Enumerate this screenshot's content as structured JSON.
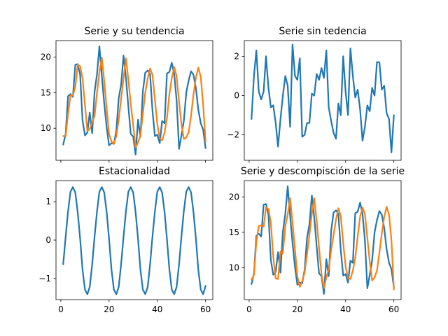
{
  "colors": {
    "series_1": "#1f77b4",
    "series_2": "#ff7f0e"
  },
  "chart_data": [
    {
      "type": "line",
      "title": "Serie y su tendencia",
      "xlim": [
        -2,
        63
      ],
      "ylim": [
        5.5,
        22.3
      ],
      "yticks": [
        10,
        15,
        20
      ],
      "xticks": [
        0,
        20,
        40,
        60
      ],
      "show_xticklabels": false,
      "series": [
        {
          "color": "#1f77b4",
          "x": [
            1,
            2,
            3,
            4,
            5,
            6,
            7,
            8,
            9,
            10,
            11,
            12,
            13,
            14,
            15,
            16,
            17,
            18,
            19,
            20,
            21,
            22,
            23,
            24,
            25,
            26,
            27,
            28,
            29,
            30,
            31,
            32,
            33,
            34,
            35,
            36,
            37,
            38,
            39,
            40,
            41,
            42,
            43,
            44,
            45,
            46,
            47,
            48,
            49,
            50,
            51,
            52,
            53,
            54,
            55,
            56,
            57,
            58,
            59,
            60
          ],
          "values": [
            7.7,
            9.2,
            14.5,
            14.8,
            14.4,
            18.9,
            19.0,
            17.5,
            11.1,
            9.0,
            9.4,
            12.2,
            9.3,
            15.1,
            17.6,
            21.5,
            17.3,
            13.5,
            10.1,
            7.6,
            7.9,
            7.8,
            9.7,
            14.2,
            16.1,
            20.2,
            17.1,
            13.0,
            9.2,
            8.8,
            6.3,
            11.2,
            8.8,
            15.2,
            17.8,
            18.1,
            17.6,
            12.5,
            8.9,
            9.1,
            7.9,
            11.0,
            10.7,
            17.7,
            17.9,
            19.2,
            17.6,
            13.9,
            7.1,
            9.0,
            11.0,
            15.0,
            16.7,
            18.0,
            17.5,
            15.6,
            12.6,
            10.7,
            9.8,
            7.2
          ]
        },
        {
          "color": "#ff7f0e",
          "x": [
            1,
            2,
            3,
            4,
            5,
            6,
            7,
            8,
            9,
            10,
            11,
            12,
            13,
            14,
            15,
            16,
            17,
            18,
            19,
            20,
            21,
            22,
            23,
            24,
            25,
            26,
            27,
            28,
            29,
            30,
            31,
            32,
            33,
            34,
            35,
            36,
            37,
            38,
            39,
            40,
            41,
            42,
            43,
            44,
            45,
            46,
            47,
            48,
            49,
            50,
            51,
            52,
            53,
            54,
            55,
            56,
            57,
            58,
            59,
            60
          ],
          "values": [
            8.9,
            8.9,
            12.0,
            14.6,
            14.6,
            15.8,
            18.9,
            18.7,
            17.0,
            13.2,
            9.6,
            9.9,
            10.8,
            11.7,
            15.0,
            17.9,
            19.9,
            16.6,
            12.8,
            9.2,
            8.1,
            7.8,
            8.9,
            11.2,
            14.1,
            17.0,
            19.8,
            16.8,
            13.4,
            10.4,
            7.3,
            8.0,
            9.0,
            12.0,
            15.0,
            17.0,
            18.4,
            17.5,
            14.0,
            10.6,
            8.6,
            8.3,
            9.4,
            11.4,
            14.8,
            17.0,
            18.6,
            17.3,
            13.7,
            10.6,
            8.5,
            8.7,
            9.4,
            11.8,
            14.7,
            17.1,
            18.5,
            17.2,
            13.3,
            8.1
          ]
        }
      ]
    },
    {
      "type": "line",
      "title": "Serie sin tedencia",
      "xlim": [
        -2,
        63
      ],
      "ylim": [
        -3.3,
        2.8
      ],
      "yticks": [
        -2,
        0,
        2
      ],
      "xticks": [
        0,
        20,
        40,
        60
      ],
      "show_xticklabels": false,
      "series": [
        {
          "color": "#1f77b4",
          "x": [
            1,
            2,
            3,
            4,
            5,
            6,
            7,
            8,
            9,
            10,
            11,
            12,
            13,
            14,
            15,
            16,
            17,
            18,
            19,
            20,
            21,
            22,
            23,
            24,
            25,
            26,
            27,
            28,
            29,
            30,
            31,
            32,
            33,
            34,
            35,
            36,
            37,
            38,
            39,
            40,
            41,
            42,
            43,
            44,
            45,
            46,
            47,
            48,
            49,
            50,
            51,
            52,
            53,
            54,
            55,
            56,
            57,
            58,
            59,
            60
          ],
          "values": [
            -1.2,
            1.0,
            2.3,
            0.2,
            -0.2,
            0.2,
            2.0,
            0.4,
            -0.6,
            -0.5,
            -1.4,
            -2.6,
            -1.2,
            0.0,
            1.0,
            0.5,
            -1.6,
            2.6,
            1.0,
            0.8,
            1.9,
            -2.1,
            -2.0,
            -1.4,
            -1.4,
            0.1,
            0.0,
            1.1,
            0.8,
            1.4,
            0.9,
            2.3,
            -0.6,
            -1.3,
            -1.9,
            -2.2,
            -0.4,
            -1.0,
            2.0,
            0.2,
            -1.0,
            2.4,
            1.0,
            -0.1,
            0.3,
            -0.7,
            -2.3,
            -1.6,
            -0.5,
            -0.8,
            0.4,
            0.0,
            1.7,
            1.7,
            0.3,
            0.5,
            -0.9,
            -1.2,
            -2.9,
            -1.0
          ]
        }
      ]
    },
    {
      "type": "line",
      "title": "Estacionalidad",
      "xlim": [
        -2,
        63
      ],
      "ylim": [
        -1.55,
        1.55
      ],
      "yticks": [
        -1,
        0,
        1
      ],
      "xticks": [
        0,
        20,
        40,
        60
      ],
      "show_xticklabels": true,
      "series": [
        {
          "color": "#1f77b4",
          "x": [
            1,
            2,
            3,
            4,
            5,
            6,
            7,
            8,
            9,
            10,
            11,
            12,
            13,
            14,
            15,
            16,
            17,
            18,
            19,
            20,
            21,
            22,
            23,
            24,
            25,
            26,
            27,
            28,
            29,
            30,
            31,
            32,
            33,
            34,
            35,
            36,
            37,
            38,
            39,
            40,
            41,
            42,
            43,
            44,
            45,
            46,
            47,
            48,
            49,
            50,
            51,
            52,
            53,
            54,
            55,
            56,
            57,
            58,
            59,
            60
          ],
          "values": [
            -0.63,
            0.09,
            0.75,
            1.26,
            1.38,
            1.24,
            0.73,
            0.03,
            -0.77,
            -1.29,
            -1.41,
            -1.22,
            -0.63,
            0.09,
            0.75,
            1.26,
            1.38,
            1.24,
            0.73,
            0.03,
            -0.77,
            -1.29,
            -1.41,
            -1.22,
            -0.63,
            0.09,
            0.75,
            1.26,
            1.38,
            1.24,
            0.73,
            0.03,
            -0.77,
            -1.29,
            -1.41,
            -1.22,
            -0.63,
            0.09,
            0.75,
            1.26,
            1.38,
            1.24,
            0.73,
            0.03,
            -0.77,
            -1.29,
            -1.41,
            -1.22,
            -0.63,
            0.09,
            0.75,
            1.26,
            1.38,
            1.24,
            0.73,
            0.03,
            -0.77,
            -1.29,
            -1.41,
            -1.19
          ]
        }
      ]
    },
    {
      "type": "line",
      "title": "Serie y descompisción de la serie",
      "xlim": [
        -2,
        63
      ],
      "ylim": [
        5.5,
        22.3
      ],
      "yticks": [
        10,
        15,
        20
      ],
      "xticks": [
        0,
        20,
        40,
        60
      ],
      "show_xticklabels": true,
      "series": [
        {
          "color": "#1f77b4",
          "x": [
            1,
            2,
            3,
            4,
            5,
            6,
            7,
            8,
            9,
            10,
            11,
            12,
            13,
            14,
            15,
            16,
            17,
            18,
            19,
            20,
            21,
            22,
            23,
            24,
            25,
            26,
            27,
            28,
            29,
            30,
            31,
            32,
            33,
            34,
            35,
            36,
            37,
            38,
            39,
            40,
            41,
            42,
            43,
            44,
            45,
            46,
            47,
            48,
            49,
            50,
            51,
            52,
            53,
            54,
            55,
            56,
            57,
            58,
            59,
            60
          ],
          "values": [
            7.7,
            9.2,
            14.5,
            14.8,
            14.4,
            18.9,
            19.0,
            17.5,
            11.1,
            9.0,
            9.4,
            12.2,
            9.3,
            15.1,
            17.6,
            21.5,
            17.3,
            13.5,
            10.1,
            7.6,
            7.9,
            7.8,
            9.7,
            14.2,
            16.1,
            20.2,
            17.1,
            13.0,
            9.2,
            8.8,
            6.3,
            11.2,
            8.8,
            15.2,
            17.8,
            18.1,
            17.6,
            12.5,
            8.9,
            9.1,
            7.9,
            11.0,
            10.7,
            17.7,
            17.9,
            19.2,
            17.6,
            13.9,
            7.1,
            9.0,
            11.0,
            15.0,
            16.7,
            18.0,
            17.5,
            15.6,
            12.6,
            10.7,
            9.8,
            7.2
          ]
        },
        {
          "color": "#ff7f0e",
          "x": [
            1,
            2,
            3,
            4,
            5,
            6,
            7,
            8,
            9,
            10,
            11,
            12,
            13,
            14,
            15,
            16,
            17,
            18,
            19,
            20,
            21,
            22,
            23,
            24,
            25,
            26,
            27,
            28,
            29,
            30,
            31,
            32,
            33,
            34,
            35,
            36,
            37,
            38,
            39,
            40,
            41,
            42,
            43,
            44,
            45,
            46,
            47,
            48,
            49,
            50,
            51,
            52,
            53,
            54,
            55,
            56,
            57,
            58,
            59,
            60
          ],
          "values": [
            8.3,
            9.0,
            13.6,
            15.9,
            16.0,
            15.8,
            18.5,
            18.3,
            16.4,
            11.5,
            8.5,
            8.4,
            12.3,
            12.0,
            15.9,
            17.5,
            19.8,
            16.4,
            12.6,
            8.8,
            7.3,
            8.1,
            9.3,
            11.9,
            14.6,
            17.6,
            19.8,
            16.6,
            12.8,
            9.1,
            7.1,
            8.6,
            9.8,
            12.5,
            14.6,
            16.8,
            18.4,
            17.3,
            13.5,
            10.2,
            8.5,
            8.4,
            9.6,
            11.4,
            14.4,
            17.2,
            18.5,
            17.6,
            14.2,
            10.9,
            8.2,
            8.6,
            9.6,
            12.1,
            14.8,
            17.2,
            18.6,
            17.5,
            13.9,
            6.9
          ]
        }
      ]
    }
  ]
}
